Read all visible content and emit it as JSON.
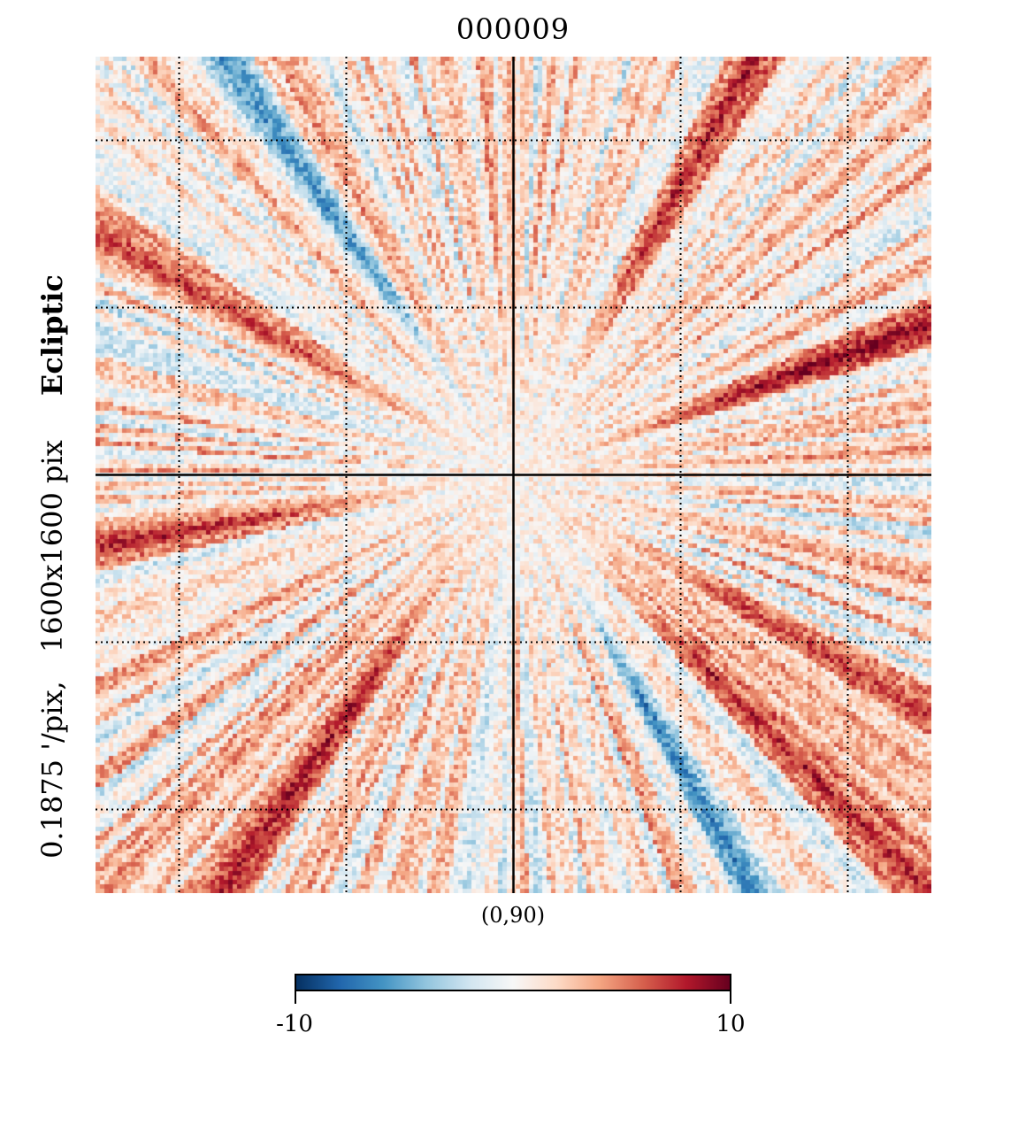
{
  "chart_data": {
    "type": "heatmap",
    "title": "000009",
    "projection_center": "(0,90)",
    "resolution_label": "0.1875 '/pix,",
    "size_label": "1600x1600 pix",
    "coord_system": "Ecliptic",
    "colorbar": {
      "min": -10,
      "max": 10,
      "min_label": "-10",
      "max_label": "10",
      "colormap": [
        "#053061",
        "#2166ac",
        "#4393c3",
        "#92c5de",
        "#d1e5f0",
        "#f7f7f7",
        "#fddbc7",
        "#f4a582",
        "#d6604d",
        "#b2182b",
        "#67001f"
      ]
    },
    "grid": "dotted",
    "pattern": "radial streaks from center, predominantly positive (red), with blue streaks along diagonals",
    "streaks": [
      {
        "angle_deg": 20,
        "value": 9.5
      },
      {
        "angle_deg": 60,
        "value": 8.5
      },
      {
        "angle_deg": 125,
        "value": -6
      },
      {
        "angle_deg": 150,
        "value": 7
      },
      {
        "angle_deg": 190,
        "value": 8
      },
      {
        "angle_deg": 235,
        "value": 8.5
      },
      {
        "angle_deg": 300,
        "value": -7
      },
      {
        "angle_deg": 315,
        "value": 8
      },
      {
        "angle_deg": 330,
        "value": 7
      }
    ]
  }
}
